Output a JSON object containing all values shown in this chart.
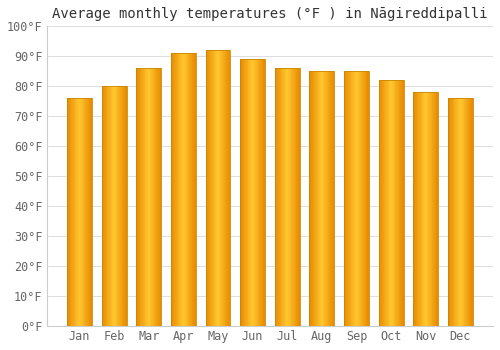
{
  "title": "Average monthly temperatures (°F ) in Nāgireddipalli",
  "months": [
    "Jan",
    "Feb",
    "Mar",
    "Apr",
    "May",
    "Jun",
    "Jul",
    "Aug",
    "Sep",
    "Oct",
    "Nov",
    "Dec"
  ],
  "values": [
    76,
    80,
    86,
    91,
    92,
    89,
    86,
    85,
    85,
    82,
    78,
    76
  ],
  "ylim": [
    0,
    100
  ],
  "yticks": [
    0,
    10,
    20,
    30,
    40,
    50,
    60,
    70,
    80,
    90,
    100
  ],
  "ytick_labels": [
    "0°F",
    "10°F",
    "20°F",
    "30°F",
    "40°F",
    "50°F",
    "60°F",
    "70°F",
    "80°F",
    "90°F",
    "100°F"
  ],
  "bar_color_center": "#FFD060",
  "bar_color_edge": "#F0900A",
  "bar_edge_color": "#C8880A",
  "background_color": "#FFFFFF",
  "grid_color": "#DDDDDD",
  "title_fontsize": 10,
  "tick_fontsize": 8.5,
  "bar_width": 0.72
}
